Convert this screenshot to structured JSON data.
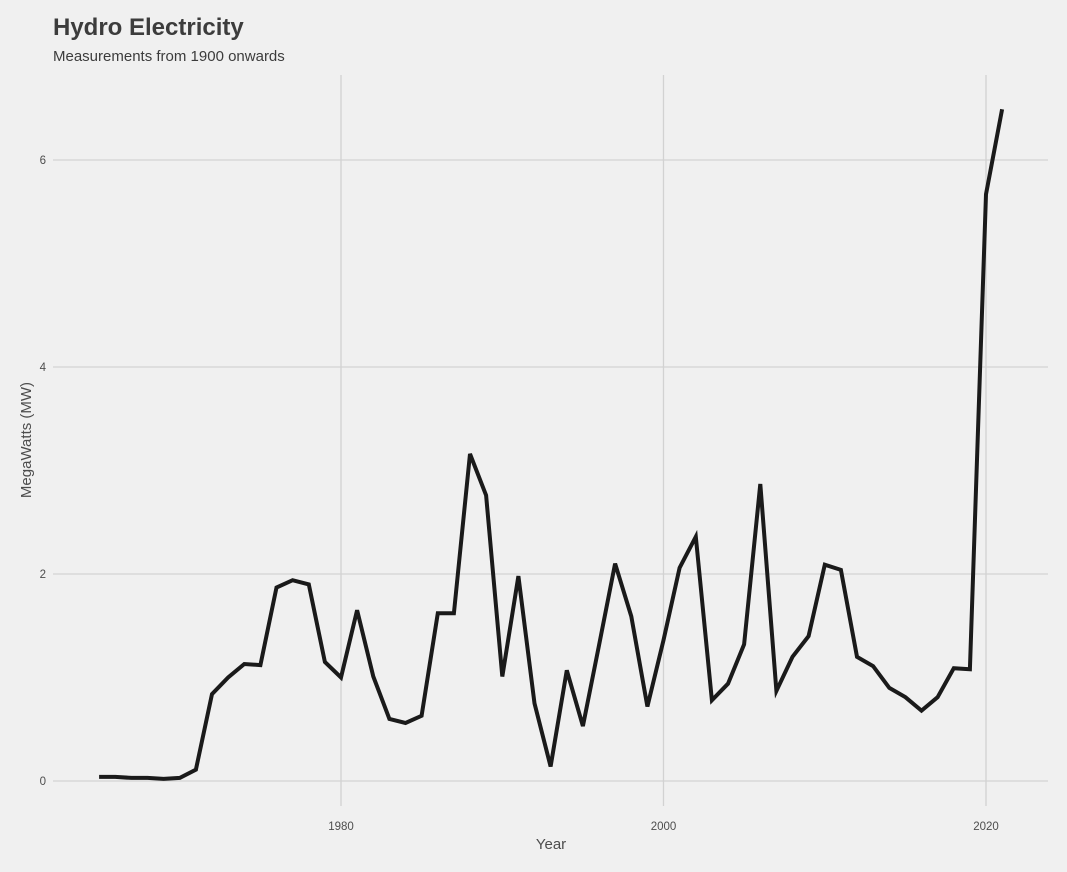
{
  "chart_data": {
    "type": "line",
    "title": "Hydro Electricity",
    "subtitle": "Measurements from 1900 onwards",
    "xlabel": "Year",
    "ylabel": "MegaWatts (MW)",
    "xlim": [
      1961,
      2024
    ],
    "ylim": [
      -0.1,
      6.8
    ],
    "x_ticks": [
      1980,
      2000,
      2020
    ],
    "x_tick_labels": [
      "1980",
      "2000",
      "2020"
    ],
    "y_ticks": [
      0,
      2,
      4,
      6
    ],
    "y_tick_labels": [
      "0",
      "2",
      "4",
      "6"
    ],
    "grid": true,
    "legend": null,
    "line_color": "#1a1a1a",
    "background_color": "#f0f0f0",
    "series": [
      {
        "name": "Hydro Electricity",
        "x": [
          1965,
          1966,
          1967,
          1968,
          1969,
          1970,
          1971,
          1972,
          1973,
          1974,
          1975,
          1976,
          1977,
          1978,
          1979,
          1980,
          1981,
          1982,
          1983,
          1984,
          1985,
          1986,
          1987,
          1988,
          1989,
          1990,
          1991,
          1992,
          1993,
          1994,
          1995,
          1996,
          1997,
          1998,
          1999,
          2000,
          2001,
          2002,
          2003,
          2004,
          2005,
          2006,
          2007,
          2008,
          2009,
          2010,
          2011,
          2012,
          2013,
          2014,
          2015,
          2016,
          2017,
          2018,
          2019,
          2020,
          2021
        ],
        "values": [
          0.04,
          0.04,
          0.03,
          0.03,
          0.02,
          0.03,
          0.11,
          0.84,
          1.0,
          1.13,
          1.12,
          1.87,
          1.94,
          1.9,
          1.15,
          1.0,
          1.65,
          1.01,
          0.6,
          0.56,
          0.63,
          1.62,
          1.62,
          3.16,
          2.76,
          1.01,
          1.98,
          0.75,
          0.14,
          1.07,
          0.53,
          1.31,
          2.1,
          1.59,
          0.72,
          1.36,
          2.06,
          2.36,
          0.78,
          0.94,
          1.32,
          2.87,
          0.87,
          1.2,
          1.4,
          2.09,
          2.04,
          1.2,
          1.11,
          0.9,
          0.81,
          0.68,
          0.81,
          1.09,
          1.08,
          5.67,
          6.49
        ]
      }
    ]
  }
}
